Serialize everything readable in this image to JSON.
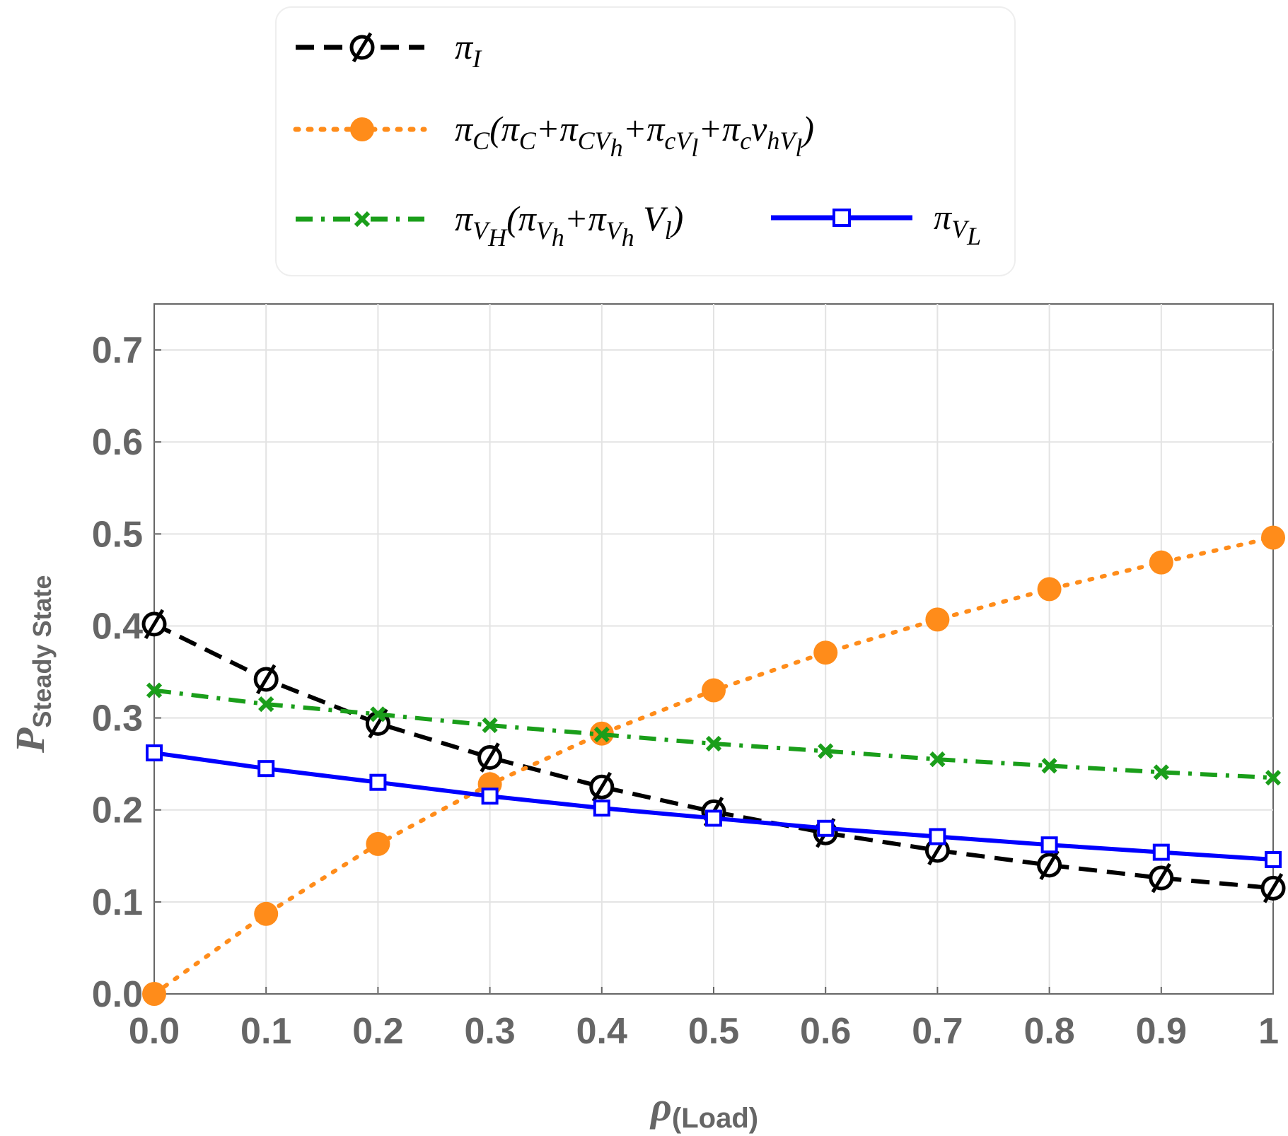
{
  "chart_data": {
    "type": "line",
    "title": "",
    "xlabel": {
      "main": "ρ",
      "sub": "(Load)"
    },
    "ylabel": {
      "main": "P",
      "sub": "Steady State"
    },
    "xlim": [
      0,
      1
    ],
    "ylim": [
      0,
      0.75
    ],
    "x_ticks": [
      "0.0",
      "0.1",
      "0.2",
      "0.3",
      "0.4",
      "0.5",
      "0.6",
      "0.7",
      "0.8",
      "0.9",
      "1"
    ],
    "y_ticks": [
      "0.0",
      "0.1",
      "0.2",
      "0.3",
      "0.4",
      "0.5",
      "0.6",
      "0.7"
    ],
    "x_tick_values": [
      0,
      0.1,
      0.2,
      0.3,
      0.4,
      0.5,
      0.6,
      0.7,
      0.8,
      0.9,
      1.0
    ],
    "y_tick_values": [
      0,
      0.1,
      0.2,
      0.3,
      0.4,
      0.5,
      0.6,
      0.7
    ],
    "grid": true,
    "x": [
      0,
      0.1,
      0.2,
      0.3,
      0.4,
      0.5,
      0.6,
      0.7,
      0.8,
      0.9,
      1.0
    ],
    "series": [
      {
        "name": "π_I",
        "color": "#000000",
        "dash": "dashed",
        "marker": "circle-slash",
        "values": [
          0.402,
          0.342,
          0.294,
          0.257,
          0.225,
          0.198,
          0.175,
          0.156,
          0.14,
          0.126,
          0.115
        ]
      },
      {
        "name": "π_C(π_C+π_CV_h+π_cV_l+π_cV_hV_l)",
        "color": "#ff8c1a",
        "dash": "dotted",
        "marker": "filled-circle",
        "values": [
          0.0,
          0.087,
          0.163,
          0.228,
          0.283,
          0.33,
          0.371,
          0.407,
          0.44,
          0.469,
          0.496
        ]
      },
      {
        "name": "π_VH(π_Vh+π_Vh V_l)",
        "color": "#1a9e1a",
        "dash": "dashdot",
        "marker": "x",
        "values": [
          0.33,
          0.315,
          0.304,
          0.292,
          0.282,
          0.272,
          0.264,
          0.255,
          0.248,
          0.241,
          0.235
        ]
      },
      {
        "name": "π_VL",
        "color": "#0000ff",
        "dash": "solid",
        "marker": "open-square",
        "values": [
          0.262,
          0.245,
          0.23,
          0.215,
          0.202,
          0.191,
          0.18,
          0.171,
          0.162,
          0.154,
          0.146
        ]
      }
    ],
    "legend_position": "top-center"
  },
  "legend": {
    "items": [
      {
        "base": "π",
        "sub": "I",
        "rest": ""
      },
      {
        "base": "π",
        "sub": "C",
        "rest": "(π",
        "sub2": "C",
        "rest2": "+π",
        "sub3": "CV",
        "sub3b": "h",
        "rest3": "+π",
        "sub4": "cV",
        "sub4b": "l",
        "rest4": "+π",
        "sub5": "c",
        "rest5": "v",
        "sub6": "hV",
        "sub6b": "l",
        "rest6": ")"
      },
      {
        "base": "π",
        "sub": "V",
        "subsub": "H",
        "rest": "(π",
        "sub2": "V",
        "subsub2": "h",
        "rest2": "+π",
        "sub3": "V",
        "subsub3": "h",
        "rest3": " V",
        "subsub4": "l",
        "rest4": ")"
      },
      {
        "base": "π",
        "sub": "V",
        "subsub": "L"
      }
    ]
  }
}
